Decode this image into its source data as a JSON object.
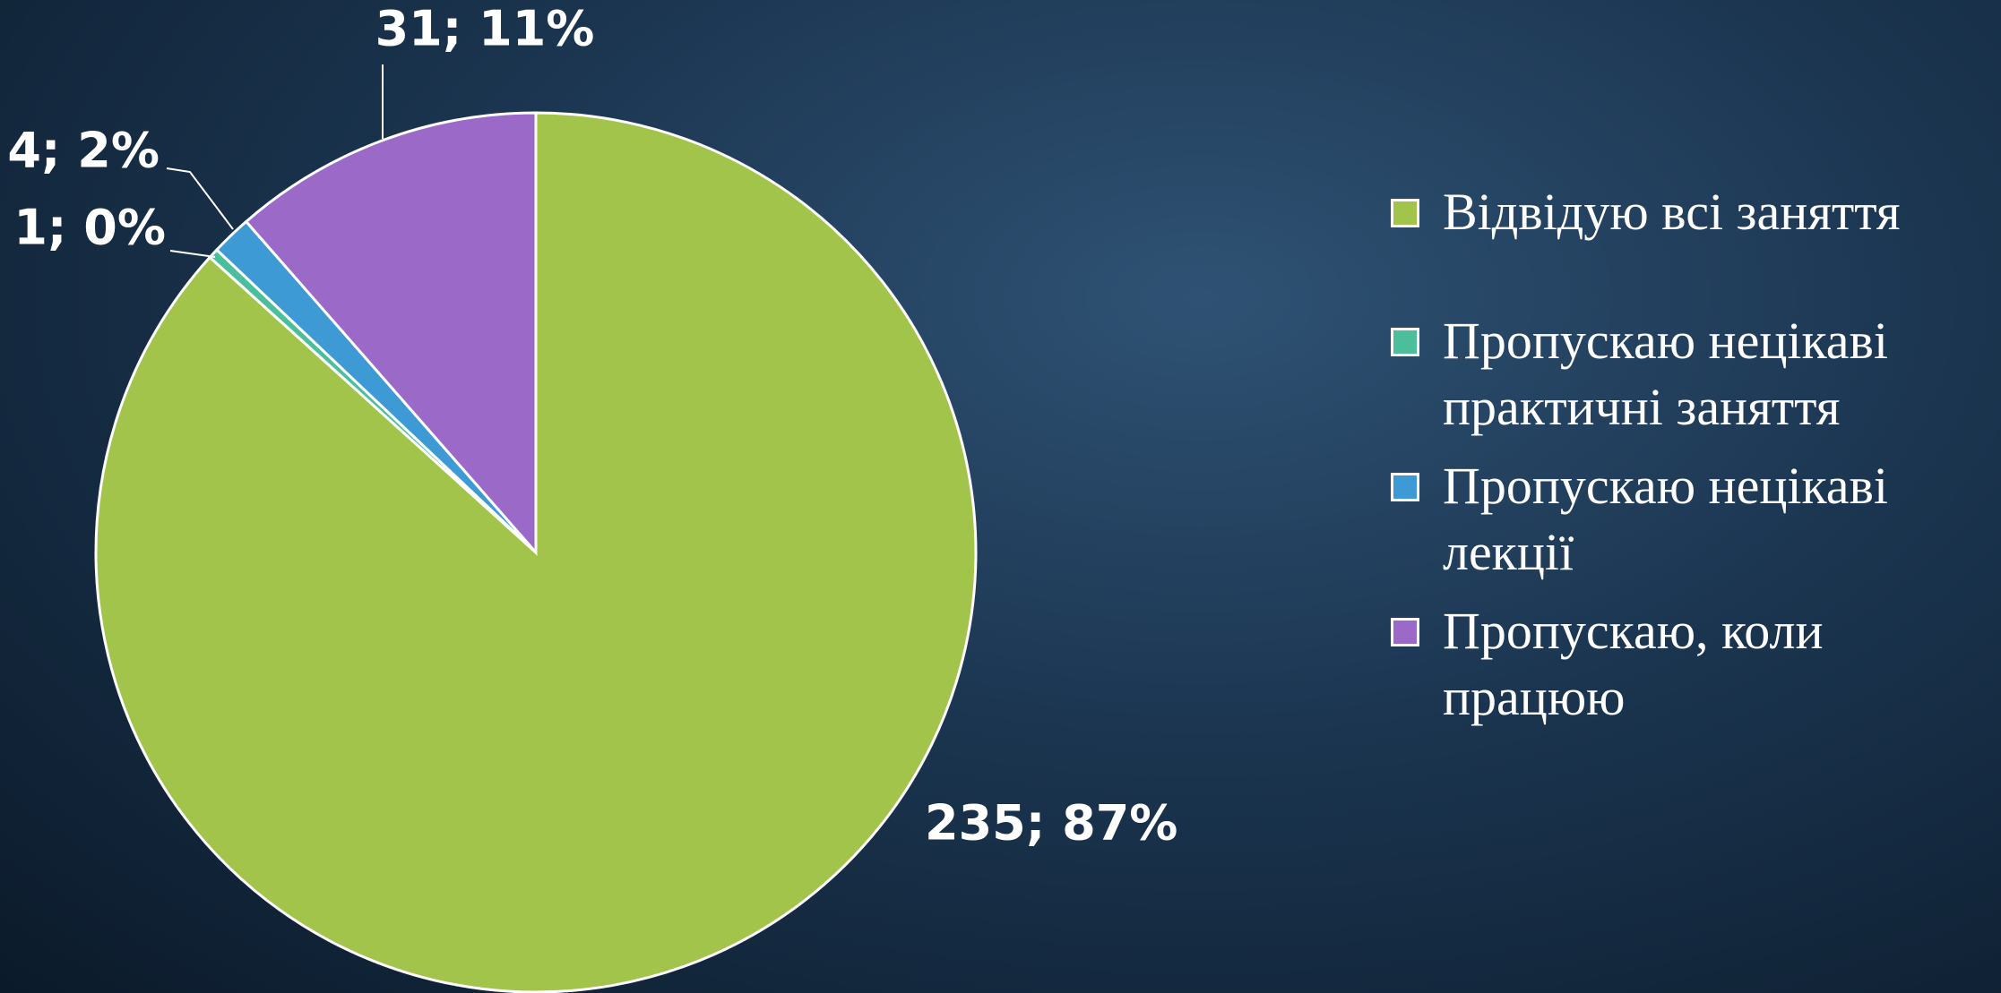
{
  "chart_data": {
    "type": "pie",
    "categories": [
      "Відвідую всі заняття",
      "Пропускаю нецікаві практичні заняття",
      "Пропускаю нецікаві лекції",
      "Пропускаю, коли працюю"
    ],
    "values": [
      235,
      1,
      4,
      31
    ],
    "value_labels": [
      "235; 87%",
      "1; 0%",
      "4; 2%",
      "31; 11%"
    ],
    "colors": [
      "#a2c44a",
      "#4bbf9c",
      "#3d9ad4",
      "#9b6ac9"
    ],
    "legend": "right"
  }
}
